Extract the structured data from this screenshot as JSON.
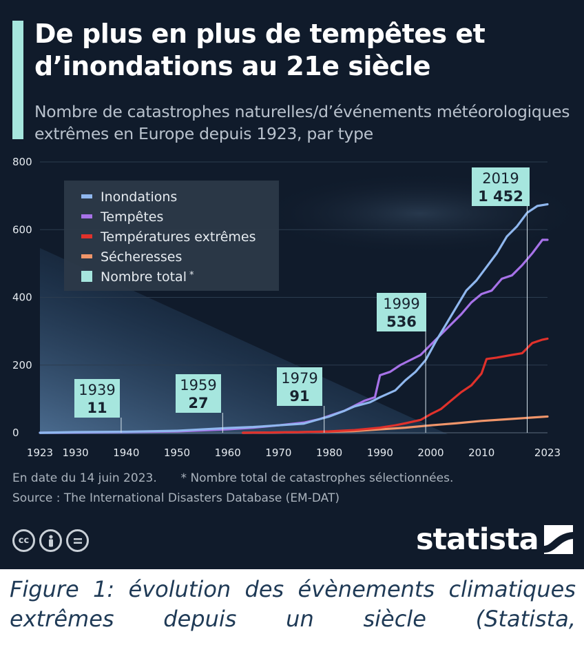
{
  "header": {
    "title": "De plus en plus de tempêtes et d’inondations au 21e siècle",
    "subtitle": "Nombre de catastrophes naturelles/d’événements météorologiques extrêmes en Europe depuis 1923, par type"
  },
  "chart_data": {
    "type": "line",
    "title": "De plus en plus de tempêtes et d’inondations au 21e siècle",
    "subtitle": "Nombre de catastrophes naturelles/d’événements météorologiques extrêmes en Europe depuis 1923, par type",
    "xlim": [
      1923,
      2023
    ],
    "ylim": [
      0,
      800
    ],
    "x_ticks": [
      1923,
      1930,
      1940,
      1950,
      1960,
      1970,
      1980,
      1990,
      2000,
      2010,
      2023
    ],
    "y_ticks": [
      0,
      200,
      400,
      600,
      800
    ],
    "grid": true,
    "legend_position": "top-left",
    "series": [
      {
        "name": "Inondations",
        "key": "inondations",
        "color": "#8fb7ee",
        "x": [
          1923,
          1930,
          1940,
          1950,
          1955,
          1960,
          1965,
          1970,
          1975,
          1978,
          1980,
          1983,
          1985,
          1988,
          1990,
          1993,
          1995,
          1997,
          1999,
          2001,
          2003,
          2005,
          2007,
          2009,
          2011,
          2013,
          2015,
          2017,
          2019,
          2021,
          2023
        ],
        "y": [
          0,
          2,
          3,
          6,
          10,
          14,
          17,
          22,
          27,
          40,
          48,
          65,
          78,
          90,
          105,
          125,
          155,
          180,
          215,
          270,
          320,
          370,
          420,
          450,
          490,
          530,
          580,
          610,
          650,
          670,
          675
        ]
      },
      {
        "name": "Tempêtes",
        "key": "tempetes",
        "color": "#a772e8",
        "x": [
          1923,
          1930,
          1940,
          1950,
          1960,
          1965,
          1970,
          1975,
          1978,
          1980,
          1983,
          1985,
          1987,
          1989,
          1990,
          1992,
          1994,
          1996,
          1998,
          2000,
          2002,
          2004,
          2006,
          2008,
          2010,
          2012,
          2014,
          2016,
          2018,
          2020,
          2022,
          2023
        ],
        "y": [
          0,
          1,
          2,
          4,
          10,
          15,
          22,
          30,
          40,
          50,
          65,
          80,
          95,
          105,
          170,
          180,
          200,
          215,
          230,
          260,
          290,
          320,
          350,
          385,
          410,
          420,
          455,
          465,
          495,
          530,
          570,
          570
        ]
      },
      {
        "name": "Températures extrêmes",
        "key": "temperatures",
        "color": "#e0312b",
        "x": [
          1963,
          1970,
          1975,
          1980,
          1985,
          1990,
          1993,
          1995,
          1998,
          2000,
          2002,
          2004,
          2006,
          2008,
          2010,
          2011,
          2013,
          2016,
          2018,
          2020,
          2022,
          2023
        ],
        "y": [
          0,
          1,
          2,
          4,
          8,
          15,
          22,
          28,
          38,
          55,
          70,
          95,
          120,
          140,
          175,
          218,
          222,
          230,
          235,
          265,
          275,
          278
        ]
      },
      {
        "name": "Sécheresses",
        "key": "secheresses",
        "color": "#f0956a",
        "x": [
          1963,
          1970,
          1975,
          1980,
          1985,
          1990,
          1995,
          2000,
          2005,
          2010,
          2015,
          2020,
          2023
        ],
        "y": [
          0,
          1,
          2,
          3,
          5,
          10,
          15,
          22,
          28,
          35,
          40,
          45,
          48
        ]
      }
    ],
    "legend_total": "Nombre total",
    "legend_total_mark": "*",
    "legend_total_color": "#a6e6de",
    "annotations": [
      {
        "year": "1939",
        "value": "11"
      },
      {
        "year": "1959",
        "value": "27"
      },
      {
        "year": "1979",
        "value": "91"
      },
      {
        "year": "1999",
        "value": "536"
      },
      {
        "year": "2019",
        "value": "1 452"
      }
    ]
  },
  "footer": {
    "date_note": "En date du 14 juin 2023.",
    "total_note": "* Nombre total de catastrophes sélectionnées.",
    "source": "Source : The International Disasters Database (EM-DAT)",
    "license_icons": [
      "cc-icon",
      "person-icon",
      "equals-icon"
    ],
    "brand": "statista"
  },
  "caption": "Figure 1: évolution des évènements climatiques extrêmes depuis un siècle (Statista,"
}
